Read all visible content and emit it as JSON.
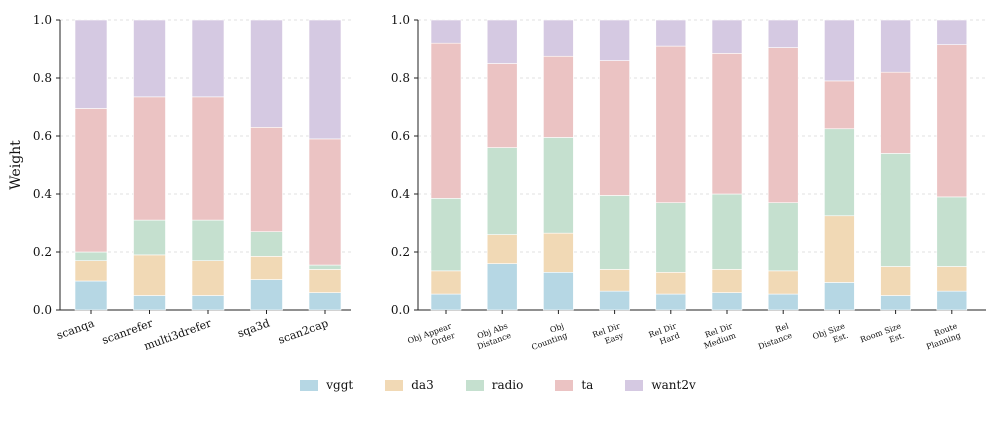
{
  "chart_data": [
    {
      "type": "bar",
      "stacked": true,
      "ylabel": "Weight",
      "ylim": [
        0,
        1.0
      ],
      "yticks": [
        "0.0",
        "0.2",
        "0.4",
        "0.6",
        "0.8",
        "1.0"
      ],
      "grid": true,
      "categories": [
        [
          "scanqa"
        ],
        [
          "scanrefer"
        ],
        [
          "multi3drefer"
        ],
        [
          "sqa3d"
        ],
        [
          "scan2cap"
        ]
      ],
      "series": [
        {
          "name": "vggt",
          "values": [
            0.1,
            0.05,
            0.05,
            0.105,
            0.06
          ]
        },
        {
          "name": "da3",
          "values": [
            0.07,
            0.14,
            0.12,
            0.08,
            0.08
          ]
        },
        {
          "name": "radio",
          "values": [
            0.03,
            0.12,
            0.14,
            0.085,
            0.015
          ]
        },
        {
          "name": "ta",
          "values": [
            0.495,
            0.425,
            0.425,
            0.36,
            0.435
          ]
        },
        {
          "name": "want2v",
          "values": [
            0.305,
            0.265,
            0.265,
            0.37,
            0.41
          ]
        }
      ]
    },
    {
      "type": "bar",
      "stacked": true,
      "ylabel": "",
      "ylim": [
        0,
        1.0
      ],
      "yticks": [
        "0.0",
        "0.2",
        "0.4",
        "0.6",
        "0.8",
        "1.0"
      ],
      "grid": true,
      "categories": [
        [
          "Obj Appear",
          "Order"
        ],
        [
          "Obj Abs",
          "Distance"
        ],
        [
          "Obj",
          "Counting"
        ],
        [
          "Rel Dir",
          "Easy"
        ],
        [
          "Rel Dir",
          "Hard"
        ],
        [
          "Rel Dir",
          "Medium"
        ],
        [
          "Rel",
          "Distance"
        ],
        [
          "Obj Size",
          "Est."
        ],
        [
          "Room Size",
          "Est."
        ],
        [
          "Route",
          "Planning"
        ]
      ],
      "series": [
        {
          "name": "vggt",
          "values": [
            0.055,
            0.16,
            0.13,
            0.065,
            0.055,
            0.06,
            0.055,
            0.095,
            0.05,
            0.065
          ]
        },
        {
          "name": "da3",
          "values": [
            0.08,
            0.1,
            0.135,
            0.075,
            0.075,
            0.08,
            0.08,
            0.23,
            0.1,
            0.085
          ]
        },
        {
          "name": "radio",
          "values": [
            0.25,
            0.3,
            0.33,
            0.255,
            0.24,
            0.26,
            0.235,
            0.3,
            0.39,
            0.24
          ]
        },
        {
          "name": "ta",
          "values": [
            0.535,
            0.29,
            0.28,
            0.465,
            0.54,
            0.485,
            0.535,
            0.165,
            0.28,
            0.525
          ]
        },
        {
          "name": "want2v",
          "values": [
            0.08,
            0.15,
            0.125,
            0.14,
            0.09,
            0.115,
            0.095,
            0.21,
            0.18,
            0.085
          ]
        }
      ]
    }
  ],
  "colors": {
    "vggt": "#b6d7e4",
    "da3": "#f1d9b5",
    "radio": "#c5e0cf",
    "ta": "#ebc3c3",
    "want2v": "#d5c9e2"
  },
  "legend": [
    "vggt",
    "da3",
    "radio",
    "ta",
    "want2v"
  ]
}
